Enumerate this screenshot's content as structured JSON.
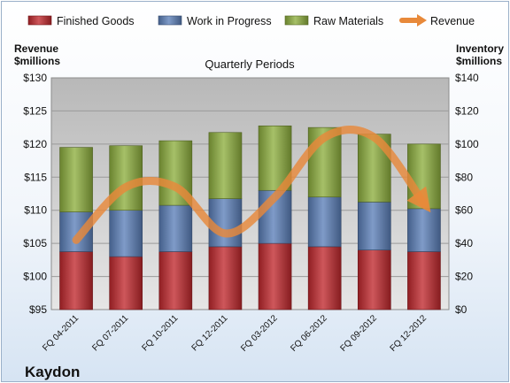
{
  "chart_data": {
    "type": "bar",
    "stacked": true,
    "title": "Quarterly Periods",
    "brand": "Kaydon",
    "categories": [
      "FQ 04-2011",
      "FQ 07-2011",
      "FQ 10-2011",
      "FQ 12-2011",
      "FQ 03-2012",
      "FQ 06-2012",
      "FQ 09-2012",
      "FQ 12-2012"
    ],
    "series": [
      {
        "name": "Finished Goods",
        "color": "#c0282d",
        "axis": "right",
        "values": [
          35,
          32,
          35,
          38,
          40,
          38,
          36,
          35
        ]
      },
      {
        "name": "Work in Progress",
        "color": "#5b7fb8",
        "axis": "right",
        "values": [
          24,
          28,
          28,
          29,
          32,
          30,
          29,
          26
        ]
      },
      {
        "name": "Raw Materials",
        "color": "#8dae3e",
        "axis": "right",
        "values": [
          39,
          39,
          39,
          40,
          39,
          42,
          41,
          39
        ]
      }
    ],
    "line_series": {
      "name": "Revenue",
      "color": "#e8893a",
      "axis": "left",
      "values": [
        105.5,
        113.5,
        113.5,
        106.5,
        112,
        121,
        121,
        111
      ]
    },
    "left_axis": {
      "title_line1": "Revenue",
      "title_line2": "$millions",
      "min": 95,
      "max": 130,
      "step": 5,
      "tick_labels": [
        "$95",
        "$100",
        "$105",
        "$110",
        "$115",
        "$120",
        "$125",
        "$130"
      ]
    },
    "right_axis": {
      "title_line1": "Inventory",
      "title_line2": "$millions",
      "min": 0,
      "max": 140,
      "step": 20,
      "tick_labels": [
        "$0",
        "$20",
        "$40",
        "$60",
        "$80",
        "$100",
        "$120",
        "$140"
      ]
    },
    "grid": true,
    "legend_position": "top"
  }
}
